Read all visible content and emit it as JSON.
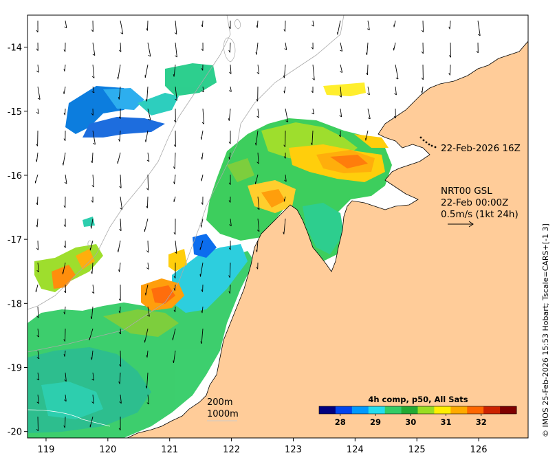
{
  "map": {
    "lon_ticks": [
      "119",
      "120",
      "121",
      "122",
      "123",
      "124",
      "125",
      "126"
    ],
    "lat_ticks": [
      "-14",
      "-15",
      "-16",
      "-17",
      "-18",
      "-19",
      "-20"
    ],
    "lon_range": [
      118.7,
      126.8
    ],
    "lat_range": [
      -20.1,
      -13.5
    ],
    "land_color": "#ffcc99",
    "background_color": "#ffffff"
  },
  "annotations": {
    "track_time": "22-Feb-2026 16Z",
    "product_name": "NRT00 GSL",
    "product_time": "22-Feb 00:00Z",
    "vector_scale": "0.5m/s (1kt 24h)",
    "isobath_200": "200m",
    "isobath_1000": "1000m"
  },
  "colorbar": {
    "title": "4h comp, p50, All Sats",
    "ticks": [
      "28",
      "29",
      "30",
      "31",
      "32"
    ],
    "range": [
      27.4,
      33.0
    ],
    "colormap": [
      "#00007f",
      "#0044ee",
      "#0099ff",
      "#22ddee",
      "#33cc66",
      "#22aa33",
      "#99dd22",
      "#ffee00",
      "#ffaa00",
      "#ff6600",
      "#cc2200",
      "#7f0000"
    ]
  },
  "credit": "© IMOS 25-Feb-2026 15:53 Hobart; Tscale=CARS+[-1 3]"
}
